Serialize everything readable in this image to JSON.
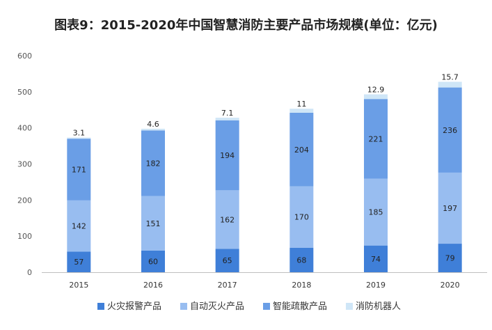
{
  "chart_data": {
    "type": "bar",
    "stacked": true,
    "title": "图表9：2015-2020年中国智慧消防主要产品市场规模(单位：亿元)",
    "categories": [
      "2015",
      "2016",
      "2017",
      "2018",
      "2019",
      "2020"
    ],
    "series": [
      {
        "name": "火灾报警产品",
        "color": "#3f7fd8",
        "values": [
          57,
          60,
          65,
          68,
          74,
          79
        ]
      },
      {
        "name": "自动灭火产品",
        "color": "#98bdf0",
        "values": [
          142,
          151,
          162,
          170,
          185,
          197
        ]
      },
      {
        "name": "智能疏散产品",
        "color": "#6a9ee6",
        "values": [
          171,
          182,
          194,
          204,
          221,
          236
        ]
      },
      {
        "name": "消防机器人",
        "color": "#cfe6f7",
        "values": [
          3.1,
          4.6,
          7.1,
          11,
          12.9,
          15.7
        ]
      }
    ],
    "ylim": [
      0,
      600
    ],
    "yticks": [
      0,
      100,
      200,
      300,
      400,
      500,
      600
    ],
    "grid": false,
    "legend": "bottom"
  }
}
